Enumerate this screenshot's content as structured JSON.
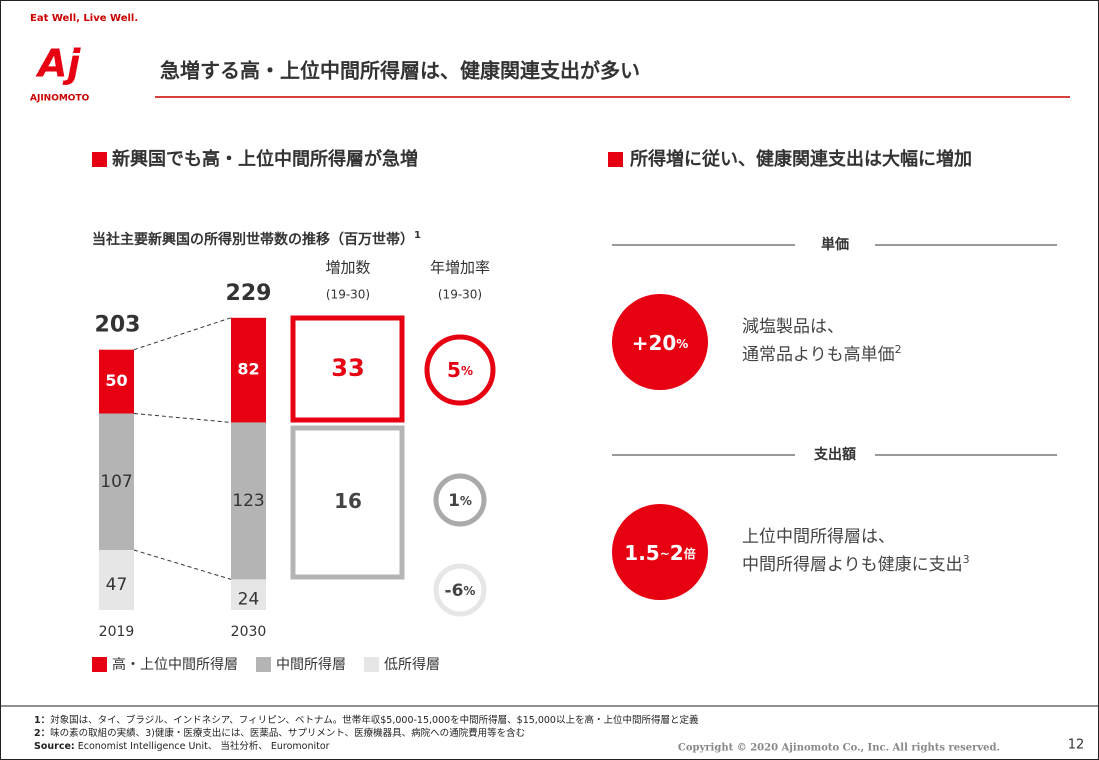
{
  "header": {
    "tagline": "Eat Well, Live Well.",
    "logo_mark": "Aj",
    "logo_name": "AJINOMOTO",
    "title": "急増する高・上位中間所得層は、健康関連支出が多い"
  },
  "left": {
    "heading": "新興国でも高・上位中間所得層が急増"
  },
  "chart_data": {
    "type": "bar",
    "stacked": true,
    "title": "当社主要新興国の所得別世帯数の推移（百万世帯）",
    "title_note": "1",
    "categories": [
      "2019",
      "2030"
    ],
    "totals": [
      203,
      229
    ],
    "series": [
      {
        "name": "高・上位中間所得層",
        "color": "#e60012",
        "values": [
          50,
          82
        ]
      },
      {
        "name": "中間所得層",
        "color": "#b4b4b4",
        "values": [
          107,
          123
        ]
      },
      {
        "name": "低所得層",
        "color": "#e6e6e6",
        "values": [
          47,
          24
        ]
      }
    ]
  },
  "growth": {
    "count_label": "増加数",
    "count_period": "(19-30)",
    "counts": [
      33,
      16
    ],
    "rate_label": "年増加率",
    "rate_period": "(19-30)",
    "rates": [
      5,
      1,
      -6
    ],
    "rate_unit": "%"
  },
  "right": {
    "heading": "所得増に従い、健康関連支出は大幅に増加",
    "sections": [
      {
        "label": "単価",
        "badge": "+20",
        "badge_unit": "%",
        "lines": [
          "減塩製品は、",
          "通常品よりも高単価"
        ],
        "note": "2"
      },
      {
        "label": "支出額",
        "badge": "1.5",
        "badge_sep": "~",
        "badge_hi": "2",
        "badge_unit": "倍",
        "lines": [
          "上位中間所得層は、",
          "中間所得層よりも健康に支出"
        ],
        "note": "3"
      }
    ]
  },
  "footer": {
    "notes": [
      {
        "key": "1：",
        "text": "対象国は、タイ、ブラジル、インドネシア、フィリピン、ベトナム。世帯年収$5,000-15,000を中間所得層、$15,000以上を高・上位中間所得層と定義"
      },
      {
        "key": "2：",
        "text": "味の素の取組の実績、3)健康・医療支出には、医薬品、サプリメント、医療機器具、病院への通院費用等を含む"
      },
      {
        "key": "Source:",
        "text": " Economist Intelligence Unit、 当社分析、 Euromonitor"
      }
    ],
    "copyright": "Copyright © 2020 Ajinomoto Co., Inc. All rights reserved.",
    "page": "12"
  }
}
